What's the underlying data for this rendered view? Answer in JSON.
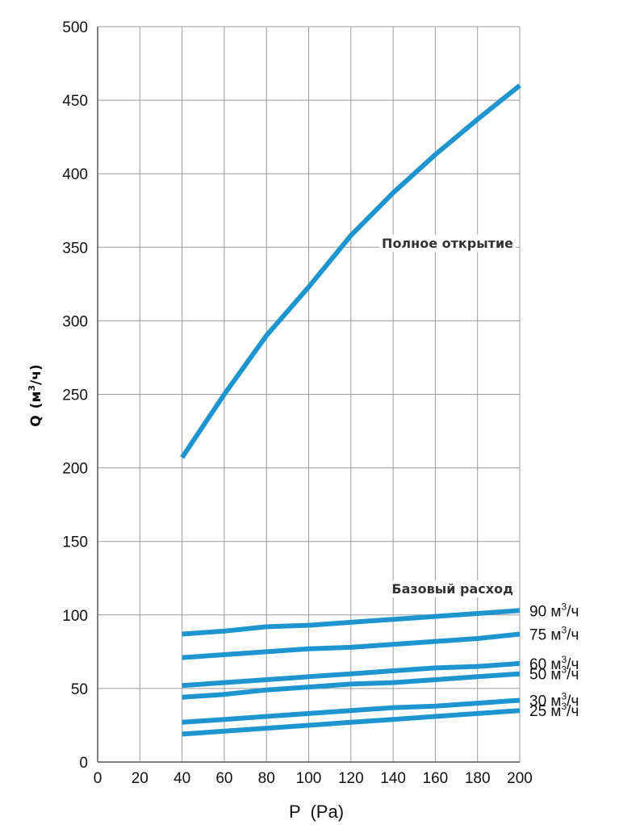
{
  "chart_data": {
    "type": "line",
    "title": "",
    "xlabel": "P  (Pa)",
    "ylabel_main": "Q",
    "ylabel_unit_base": "м",
    "ylabel_unit_sup": "3",
    "ylabel_unit_tail": "/ч",
    "xlim": [
      0,
      200
    ],
    "ylim": [
      0,
      500
    ],
    "x_ticks": [
      0,
      20,
      40,
      60,
      80,
      100,
      120,
      140,
      160,
      180,
      200
    ],
    "y_ticks": [
      0,
      50,
      100,
      150,
      200,
      250,
      300,
      350,
      400,
      450,
      500
    ],
    "grid": true,
    "series_color": "#1e95cf",
    "x": [
      40,
      60,
      80,
      100,
      120,
      140,
      160,
      180,
      200
    ],
    "series": [
      {
        "name": "Полное открытие",
        "label_prefix": "",
        "label_unit": "",
        "values": [
          207,
          250,
          290,
          323,
          358,
          387,
          413,
          437,
          460
        ]
      },
      {
        "name": "90 м³/ч",
        "label_prefix": "90",
        "label_unit": "м",
        "values": [
          87,
          89,
          92,
          93,
          95,
          97,
          99,
          101,
          103
        ]
      },
      {
        "name": "75 м³/ч",
        "label_prefix": "75",
        "label_unit": "м",
        "values": [
          71,
          73,
          75,
          77,
          78,
          80,
          82,
          84,
          87
        ]
      },
      {
        "name": "60 м³/ч",
        "label_prefix": "60",
        "label_unit": "м",
        "values": [
          52,
          54,
          56,
          58,
          60,
          62,
          64,
          65,
          67
        ]
      },
      {
        "name": "50 м³/ч",
        "label_prefix": "50",
        "label_unit": "м",
        "values": [
          44,
          46,
          49,
          51,
          53,
          54,
          56,
          58,
          60
        ]
      },
      {
        "name": "30 м³/ч",
        "label_prefix": "30",
        "label_unit": "м",
        "values": [
          27,
          29,
          31,
          33,
          35,
          37,
          38,
          40,
          42
        ]
      },
      {
        "name": "25 м³/ч",
        "label_prefix": "25",
        "label_unit": "м",
        "values": [
          19,
          21,
          23,
          25,
          27,
          29,
          31,
          33,
          35
        ]
      }
    ],
    "series_label_sup": "3",
    "series_label_tail": "/ч",
    "annotations": [
      {
        "text": "Полное открытие",
        "x": 200,
        "y": 353
      },
      {
        "text": "Базовый расход",
        "x": 200,
        "y": 118
      }
    ]
  }
}
